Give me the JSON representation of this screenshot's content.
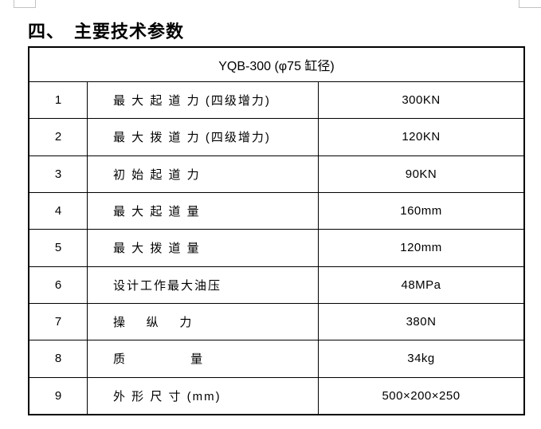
{
  "page": {
    "heading": "四、　主要技术参数"
  },
  "table": {
    "header": "YQB-300 (φ75 缸径)",
    "rows": [
      {
        "no": "1",
        "label": "最 大 起 道 力 (四级增力)",
        "value": "300KN"
      },
      {
        "no": "2",
        "label": "最 大 拨 道 力 (四级增力)",
        "value": "120KN"
      },
      {
        "no": "3",
        "label": "初 始 起 道 力",
        "value": "90KN"
      },
      {
        "no": "4",
        "label": "最 大 起 道 量",
        "value": "160mm"
      },
      {
        "no": "5",
        "label": "最 大 拨 道 量",
        "value": "120mm"
      },
      {
        "no": "6",
        "label": "设计工作最大油压",
        "value": "48MPa"
      },
      {
        "no": "7",
        "label": "操    纵    力",
        "value": "380N"
      },
      {
        "no": "8",
        "label": "质             量",
        "value": "34kg"
      },
      {
        "no": "9",
        "label": "外 形 尺 寸 (mm)",
        "value": "500×200×250"
      }
    ]
  }
}
